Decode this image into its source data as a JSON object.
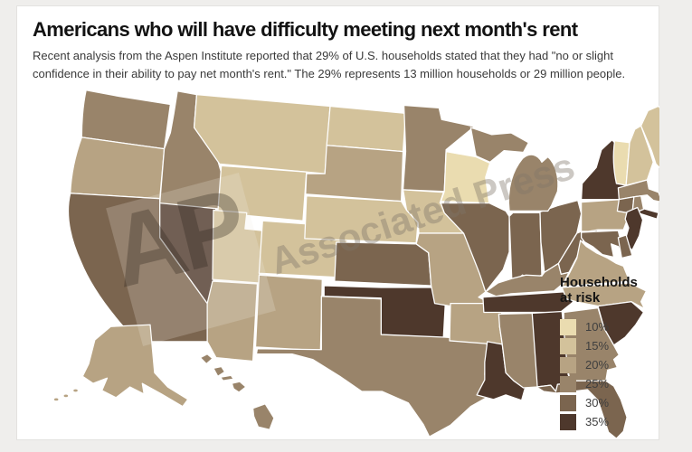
{
  "page": {
    "background": "#efeeec",
    "card_background": "#ffffff",
    "card_border": "#e3e2e0"
  },
  "header": {
    "title": "Americans who will have difficulty meeting next month's rent",
    "subtitle_line1": "Recent analysis from the Aspen Institute reported that 29% of U.S. households stated that they had \"no or slight",
    "subtitle_line2": "confidence in their ability to pay net month's rent.\" The 29% represents 13 million households or 29 million people."
  },
  "watermark": {
    "short": "AP",
    "long": "Associated Press"
  },
  "legend": {
    "title": "Households at risk",
    "bins": [
      {
        "label": "10%",
        "color": "#eadcb0"
      },
      {
        "label": "15%",
        "color": "#d3c29b"
      },
      {
        "label": "20%",
        "color": "#b7a383"
      },
      {
        "label": "25%",
        "color": "#99846a"
      },
      {
        "label": "30%",
        "color": "#7b654f"
      },
      {
        "label": "35%",
        "color": "#4e382c"
      }
    ]
  },
  "chart_data": {
    "type": "heatmap",
    "subtype": "us-choropleth",
    "title": "Americans who will have difficulty meeting next month's rent",
    "metric": "Percent of households at risk of missing next month's rent",
    "legend_title": "Households at risk",
    "scale_bins_percent": [
      10,
      15,
      20,
      25,
      30,
      35
    ],
    "states": [
      {
        "id": "WA",
        "name": "Washington",
        "value": 25
      },
      {
        "id": "OR",
        "name": "Oregon",
        "value": 20
      },
      {
        "id": "CA",
        "name": "California",
        "value": 30
      },
      {
        "id": "NV",
        "name": "Nevada",
        "value": 35
      },
      {
        "id": "ID",
        "name": "Idaho",
        "value": 25
      },
      {
        "id": "MT",
        "name": "Montana",
        "value": 15
      },
      {
        "id": "WY",
        "name": "Wyoming",
        "value": 15
      },
      {
        "id": "UT",
        "name": "Utah",
        "value": 15
      },
      {
        "id": "CO",
        "name": "Colorado",
        "value": 15
      },
      {
        "id": "AZ",
        "name": "Arizona",
        "value": 20
      },
      {
        "id": "NM",
        "name": "New Mexico",
        "value": 20
      },
      {
        "id": "ND",
        "name": "North Dakota",
        "value": 15
      },
      {
        "id": "SD",
        "name": "South Dakota",
        "value": 20
      },
      {
        "id": "NE",
        "name": "Nebraska",
        "value": 15
      },
      {
        "id": "KS",
        "name": "Kansas",
        "value": 30
      },
      {
        "id": "OK",
        "name": "Oklahoma",
        "value": 35
      },
      {
        "id": "TX",
        "name": "Texas",
        "value": 25
      },
      {
        "id": "MN",
        "name": "Minnesota",
        "value": 25
      },
      {
        "id": "IA",
        "name": "Iowa",
        "value": 15
      },
      {
        "id": "MO",
        "name": "Missouri",
        "value": 20
      },
      {
        "id": "AR",
        "name": "Arkansas",
        "value": 20
      },
      {
        "id": "LA",
        "name": "Louisiana",
        "value": 35
      },
      {
        "id": "WI",
        "name": "Wisconsin",
        "value": 10
      },
      {
        "id": "IL",
        "name": "Illinois",
        "value": 30
      },
      {
        "id": "IN",
        "name": "Indiana",
        "value": 30
      },
      {
        "id": "OH",
        "name": "Ohio",
        "value": 30
      },
      {
        "id": "MI",
        "name": "Michigan",
        "value": 25
      },
      {
        "id": "KY",
        "name": "Kentucky",
        "value": 25
      },
      {
        "id": "TN",
        "name": "Tennessee",
        "value": 35
      },
      {
        "id": "WV",
        "name": "West Virginia",
        "value": 30
      },
      {
        "id": "PA",
        "name": "Pennsylvania",
        "value": 20
      },
      {
        "id": "NY",
        "name": "New York",
        "value": 35
      },
      {
        "id": "VT",
        "name": "Vermont",
        "value": 10
      },
      {
        "id": "NH",
        "name": "New Hampshire",
        "value": 15
      },
      {
        "id": "ME",
        "name": "Maine",
        "value": 15
      },
      {
        "id": "MA",
        "name": "Massachusetts",
        "value": 25
      },
      {
        "id": "CT",
        "name": "Connecticut",
        "value": 30
      },
      {
        "id": "RI",
        "name": "Rhode Island",
        "value": 25
      },
      {
        "id": "NJ",
        "name": "New Jersey",
        "value": 35
      },
      {
        "id": "DE",
        "name": "Delaware",
        "value": 30
      },
      {
        "id": "MD",
        "name": "Maryland",
        "value": 30
      },
      {
        "id": "VA",
        "name": "Virginia",
        "value": 20
      },
      {
        "id": "NC",
        "name": "North Carolina",
        "value": 20
      },
      {
        "id": "SC",
        "name": "South Carolina",
        "value": 35
      },
      {
        "id": "GA",
        "name": "Georgia",
        "value": 25
      },
      {
        "id": "AL",
        "name": "Alabama",
        "value": 35
      },
      {
        "id": "MS",
        "name": "Mississippi",
        "value": 25
      },
      {
        "id": "FL",
        "name": "Florida",
        "value": 30
      },
      {
        "id": "AK",
        "name": "Alaska",
        "value": 20
      },
      {
        "id": "HI",
        "name": "Hawaii",
        "value": 25
      }
    ]
  }
}
